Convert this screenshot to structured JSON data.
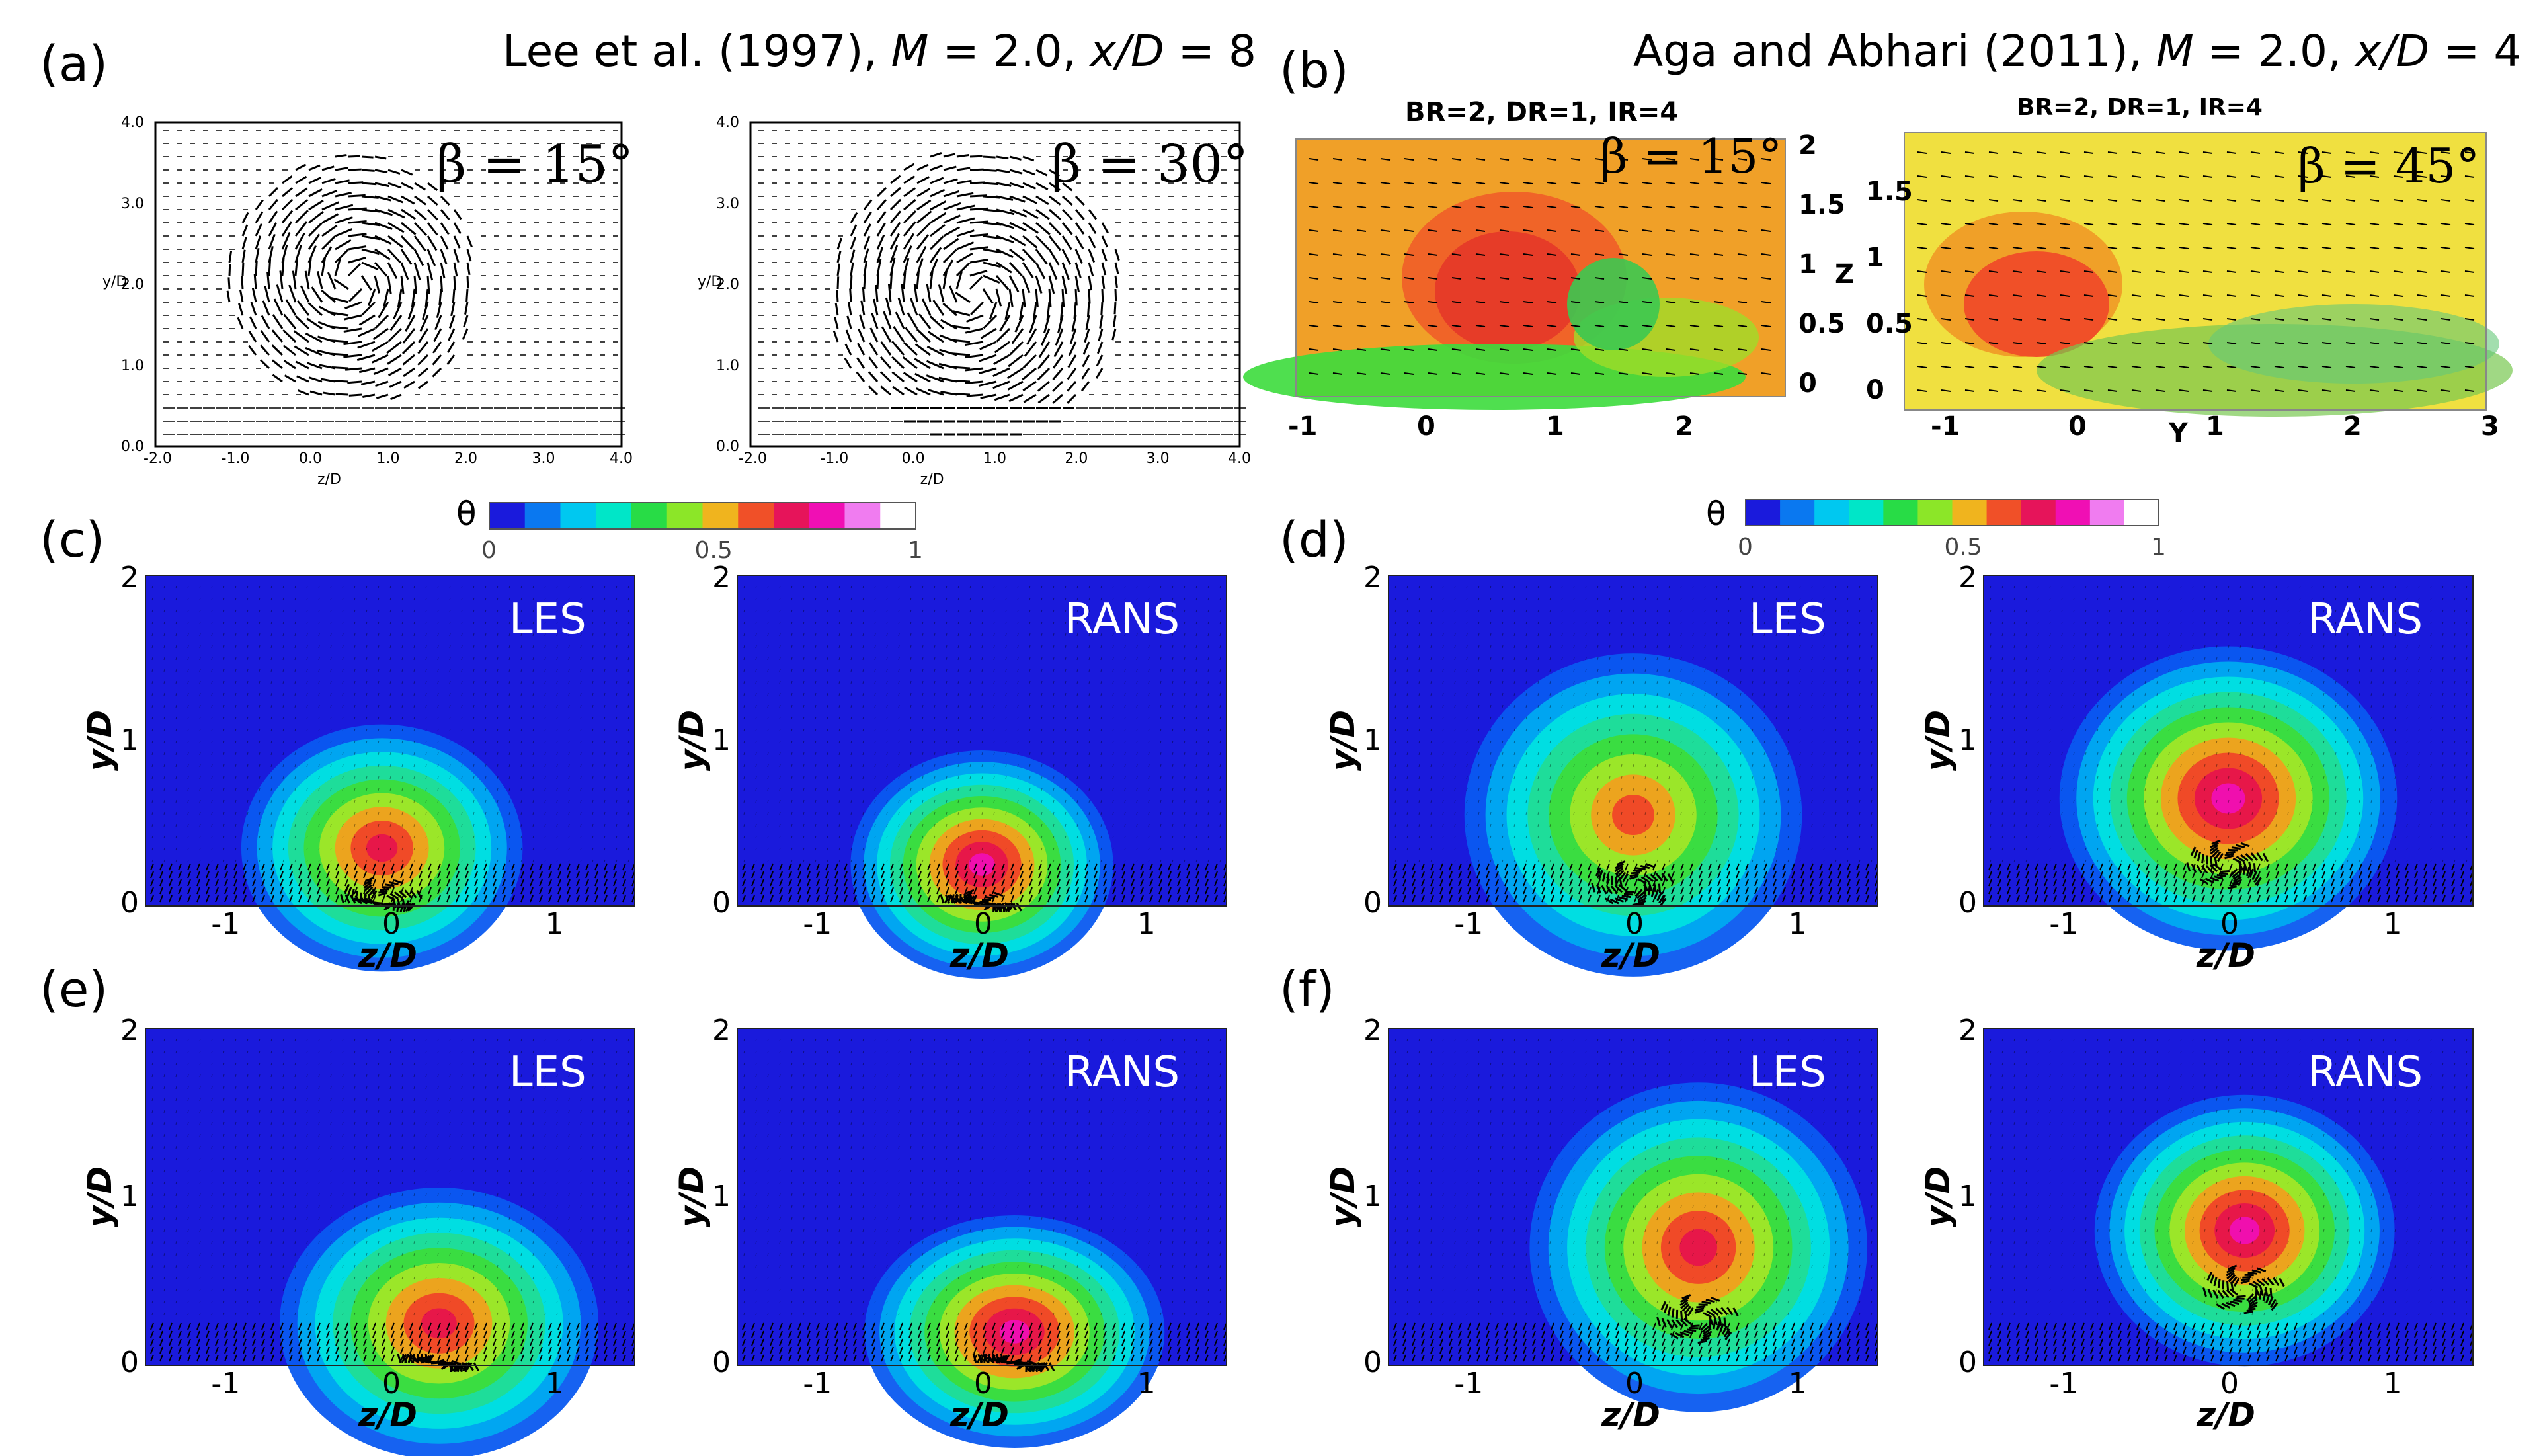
{
  "panels": {
    "a": {
      "label": "(a)",
      "title": "Lee et al. (1997), M = 2.0, x/D = 8",
      "title_pre": "Lee et al. (1997), ",
      "title_M": "M",
      "title_mid": " = 2.0, ",
      "title_xD": "x/D",
      "title_end": " = 8",
      "left_beta": "β = 15°",
      "right_beta": "β = 30°",
      "y_axis_label": "y/D",
      "x_axis_label": "z/D",
      "y_ticks": [
        "4.0",
        "3.0",
        "2.0",
        "1.0",
        "0.0"
      ],
      "x_ticks": [
        "-2.0",
        "-1.0",
        "0.0",
        "1.0",
        "2.0",
        "3.0",
        "4.0"
      ]
    },
    "b": {
      "label": "(b)",
      "title_pre": "Aga and Abhari (2011), ",
      "title_M": "M",
      "title_mid": " = 2.0, ",
      "title_xD": "x/D",
      "title_end": " = 4",
      "left_header": "BR=2, DR=1, IR=4",
      "right_header": "BR=2, DR=1, IR=4",
      "left_beta": "β = 15°",
      "right_beta": "β = 45°",
      "left_z_ticks": [
        "2",
        "1.5",
        "1",
        "0.5",
        "0"
      ],
      "z_label": "Z",
      "left_x_ticks": [
        "-1",
        "0",
        "1",
        "2"
      ],
      "right_y_ticks": [
        "1.5",
        "1",
        "0.5",
        "0"
      ],
      "right_x_ticks": [
        "-1",
        "0",
        "1",
        "2",
        "3"
      ],
      "right_x_label": "Y"
    },
    "c": {
      "label": "(c)",
      "left_tag": "LES",
      "right_tag": "RANS"
    },
    "d": {
      "label": "(d)",
      "left_tag": "LES",
      "right_tag": "RANS"
    },
    "e": {
      "label": "(e)",
      "left_tag": "LES",
      "right_tag": "RANS"
    },
    "f": {
      "label": "(f)",
      "left_tag": "LES",
      "right_tag": "RANS"
    }
  },
  "colorbar": {
    "symbol": "θ",
    "ticks": [
      "0",
      "0.5",
      "1"
    ],
    "colors": [
      "#1a1adc",
      "#0a78f0",
      "#00c8f0",
      "#00e6c8",
      "#28dc46",
      "#8ce628",
      "#f0b41e",
      "#f05028",
      "#e6145a",
      "#f00fb4",
      "#f07cf0",
      "#ffffff"
    ]
  },
  "axes": {
    "y_label": "y/D",
    "x_label": "z/D",
    "y_ticks": [
      "2",
      "1",
      "0"
    ],
    "x_ticks": [
      "-1",
      "0",
      "1"
    ]
  },
  "chart_data": [
    {
      "type": "heatmap",
      "title": "(c) LES",
      "field": "theta",
      "xlabel": "z/D",
      "ylabel": "y/D",
      "xlim": [
        -1.5,
        1.5
      ],
      "ylim": [
        0,
        2
      ],
      "plume_center": [
        -0.05,
        0.35
      ],
      "plume_radius": [
        0.75,
        0.65
      ],
      "peak_theta": 0.8
    },
    {
      "type": "heatmap",
      "title": "(c) RANS",
      "field": "theta",
      "xlabel": "z/D",
      "ylabel": "y/D",
      "xlim": [
        -1.5,
        1.5
      ],
      "ylim": [
        0,
        2
      ],
      "plume_center": [
        0.0,
        0.25
      ],
      "plume_radius": [
        0.7,
        0.6
      ],
      "peak_theta": 0.9
    },
    {
      "type": "heatmap",
      "title": "(d) LES",
      "field": "theta",
      "xlabel": "z/D",
      "ylabel": "y/D",
      "xlim": [
        -1.5,
        1.5
      ],
      "ylim": [
        0,
        2
      ],
      "plume_center": [
        0.0,
        0.55
      ],
      "plume_radius": [
        0.9,
        0.85
      ],
      "peak_theta": 0.75
    },
    {
      "type": "heatmap",
      "title": "(d) RANS",
      "field": "theta",
      "xlabel": "z/D",
      "ylabel": "y/D",
      "xlim": [
        -1.5,
        1.5
      ],
      "ylim": [
        0,
        2
      ],
      "plume_center": [
        0.0,
        0.65
      ],
      "plume_radius": [
        0.9,
        0.8
      ],
      "peak_theta": 0.9
    },
    {
      "type": "heatmap",
      "title": "(e) LES",
      "field": "theta",
      "xlabel": "z/D",
      "ylabel": "y/D",
      "xlim": [
        -1.5,
        1.5
      ],
      "ylim": [
        0,
        2
      ],
      "plume_center": [
        0.3,
        0.25
      ],
      "plume_radius": [
        0.85,
        0.7
      ],
      "peak_theta": 0.8
    },
    {
      "type": "heatmap",
      "title": "(e) RANS",
      "field": "theta",
      "xlabel": "z/D",
      "ylabel": "y/D",
      "xlim": [
        -1.5,
        1.5
      ],
      "ylim": [
        0,
        2
      ],
      "plume_center": [
        0.2,
        0.2
      ],
      "plume_radius": [
        0.8,
        0.6
      ],
      "peak_theta": 0.9
    },
    {
      "type": "heatmap",
      "title": "(f) LES",
      "field": "theta",
      "xlabel": "z/D",
      "ylabel": "y/D",
      "xlim": [
        -1.5,
        1.5
      ],
      "ylim": [
        0,
        2
      ],
      "plume_center": [
        0.4,
        0.7
      ],
      "plume_radius": [
        0.9,
        0.85
      ],
      "peak_theta": 0.8
    },
    {
      "type": "heatmap",
      "title": "(f) RANS",
      "field": "theta",
      "xlabel": "z/D",
      "ylabel": "y/D",
      "xlim": [
        -1.5,
        1.5
      ],
      "ylim": [
        0,
        2
      ],
      "plume_center": [
        0.1,
        0.8
      ],
      "plume_radius": [
        0.8,
        0.7
      ],
      "peak_theta": 0.95
    }
  ]
}
